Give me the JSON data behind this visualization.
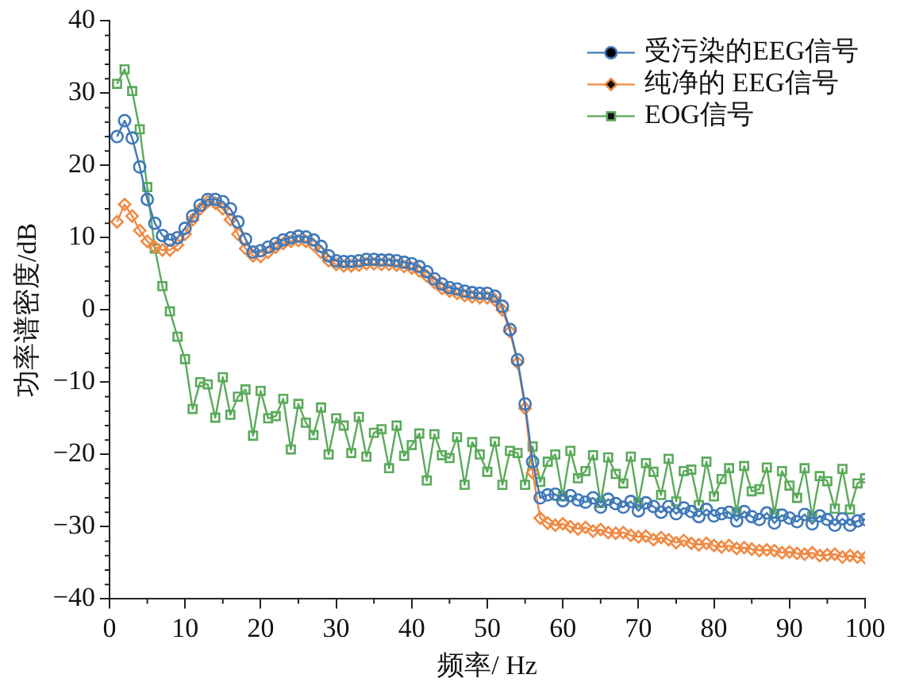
{
  "chart_data": {
    "type": "line",
    "xlabel": "频率/ Hz",
    "ylabel": "功率谱密度/dB",
    "x": [
      1,
      2,
      3,
      4,
      5,
      6,
      7,
      8,
      9,
      10,
      11,
      12,
      13,
      14,
      15,
      16,
      17,
      18,
      19,
      20,
      21,
      22,
      23,
      24,
      25,
      26,
      27,
      28,
      29,
      30,
      31,
      32,
      33,
      34,
      35,
      36,
      37,
      38,
      39,
      40,
      41,
      42,
      43,
      44,
      45,
      46,
      47,
      48,
      49,
      50,
      51,
      52,
      53,
      54,
      55,
      56,
      57,
      58,
      59,
      60,
      61,
      62,
      63,
      64,
      65,
      66,
      67,
      68,
      69,
      70,
      71,
      72,
      73,
      74,
      75,
      76,
      77,
      78,
      79,
      80,
      81,
      82,
      83,
      84,
      85,
      86,
      87,
      88,
      89,
      90,
      91,
      92,
      93,
      94,
      95,
      96,
      97,
      98,
      99,
      100
    ],
    "xlim": [
      0,
      100
    ],
    "xticks": [
      0,
      10,
      20,
      30,
      40,
      50,
      60,
      70,
      80,
      90,
      100
    ],
    "ylim": [
      -40,
      40
    ],
    "yticks": [
      -40,
      -30,
      -20,
      -10,
      0,
      10,
      20,
      30,
      40
    ],
    "grid": false,
    "legend": "top right",
    "series": [
      {
        "name": "受污染的EEG信号",
        "color": "#3f78b8",
        "marker": "circle",
        "values": [
          24,
          26.2,
          23.8,
          19.8,
          15.3,
          12,
          10.3,
          9.7,
          10,
          11.3,
          13,
          14.5,
          15.3,
          15.3,
          15,
          14,
          12.2,
          9.8,
          8,
          8.2,
          8.7,
          9.2,
          9.7,
          10,
          10.2,
          10.1,
          9.7,
          8.8,
          7.5,
          6.8,
          6.7,
          6.7,
          6.8,
          7,
          7,
          6.9,
          6.9,
          6.8,
          6.6,
          6.4,
          6,
          5.3,
          4.3,
          3.6,
          3.1,
          2.9,
          2.6,
          2.4,
          2.3,
          2.3,
          1.9,
          0.5,
          -2.7,
          -6.9,
          -13,
          -21,
          -26,
          -25.6,
          -25.5,
          -26.4,
          -25.7,
          -26.3,
          -26.6,
          -26,
          -27.3,
          -26.2,
          -26.8,
          -27.3,
          -26.5,
          -27.8,
          -26.7,
          -27.2,
          -28,
          -27.2,
          -28.2,
          -27.4,
          -27.9,
          -28.6,
          -27.6,
          -28.5,
          -28.2,
          -28,
          -29.2,
          -27.9,
          -28.6,
          -29,
          -28.1,
          -29.5,
          -28.4,
          -28.8,
          -29.3,
          -28.3,
          -29.6,
          -28.5,
          -29,
          -29.8,
          -28.9,
          -29.8,
          -29.2,
          -29
        ]
      },
      {
        "name": "纯净的 EEG信号",
        "color": "#f08a45",
        "marker": "diamond",
        "values": [
          12.2,
          14.6,
          13,
          11,
          9.5,
          8.7,
          8.3,
          8.3,
          9,
          10.5,
          12.5,
          14,
          15,
          14.8,
          14,
          12.5,
          10.5,
          8.5,
          7.5,
          7.4,
          8,
          8.7,
          9.2,
          9.5,
          9.6,
          9.5,
          9,
          8,
          6.8,
          6.3,
          6.1,
          6.1,
          6.2,
          6.4,
          6.4,
          6.3,
          6.3,
          6.2,
          6,
          5.8,
          5.4,
          4.7,
          3.8,
          3,
          2.6,
          2.3,
          2,
          1.8,
          1.7,
          1.7,
          1.4,
          0,
          -3,
          -7.3,
          -13.6,
          -22.5,
          -28.8,
          -29.5,
          -29.8,
          -29.6,
          -30,
          -30.3,
          -30.1,
          -30.6,
          -30.4,
          -30.8,
          -30.9,
          -30.8,
          -31.2,
          -31.4,
          -31.3,
          -31.8,
          -31.5,
          -31.8,
          -32.2,
          -31.9,
          -32.3,
          -32.5,
          -32.3,
          -32.6,
          -32.8,
          -32.6,
          -33,
          -32.9,
          -33.1,
          -33.3,
          -33.2,
          -33.3,
          -33.6,
          -33.5,
          -33.7,
          -33.8,
          -33.6,
          -34,
          -33.9,
          -33.8,
          -34.2,
          -34,
          -34.2,
          -34.3
        ]
      },
      {
        "name": "EOG信号",
        "color": "#5aaa5a",
        "marker": "square",
        "values": [
          31.3,
          33.3,
          30.3,
          25,
          17,
          8.5,
          3.3,
          -0.2,
          -3.7,
          -6.8,
          -13.7,
          -10,
          -10.3,
          -14.9,
          -9.3,
          -14.5,
          -12,
          -11,
          -17.4,
          -11.2,
          -15,
          -14.7,
          -12.3,
          -19.3,
          -13,
          -15.6,
          -17.3,
          -13.5,
          -20,
          -15,
          -16,
          -19.8,
          -14.8,
          -20.3,
          -17,
          -16.5,
          -21.9,
          -16,
          -20.2,
          -18.7,
          -17.1,
          -23.6,
          -17.2,
          -20.1,
          -20.5,
          -17.6,
          -24.2,
          -18.3,
          -20,
          -22.4,
          -18.2,
          -24.2,
          -19.5,
          -19.8,
          -24.2,
          -18.9,
          -23.8,
          -21,
          -20,
          -25.8,
          -19.5,
          -23.3,
          -22.3,
          -20.1,
          -26.7,
          -20.4,
          -22.7,
          -24,
          -20.3,
          -26.7,
          -21.2,
          -22.4,
          -25.6,
          -20.6,
          -26.5,
          -22.3,
          -22.1,
          -27,
          -21,
          -25.8,
          -23.4,
          -21.9,
          -28,
          -21.6,
          -25.1,
          -24.8,
          -21.8,
          -28.2,
          -22.3,
          -24.3,
          -26,
          -21.9,
          -28.6,
          -23,
          -23.7,
          -27.5,
          -22,
          -27.6,
          -24,
          -23.3
        ]
      }
    ]
  }
}
